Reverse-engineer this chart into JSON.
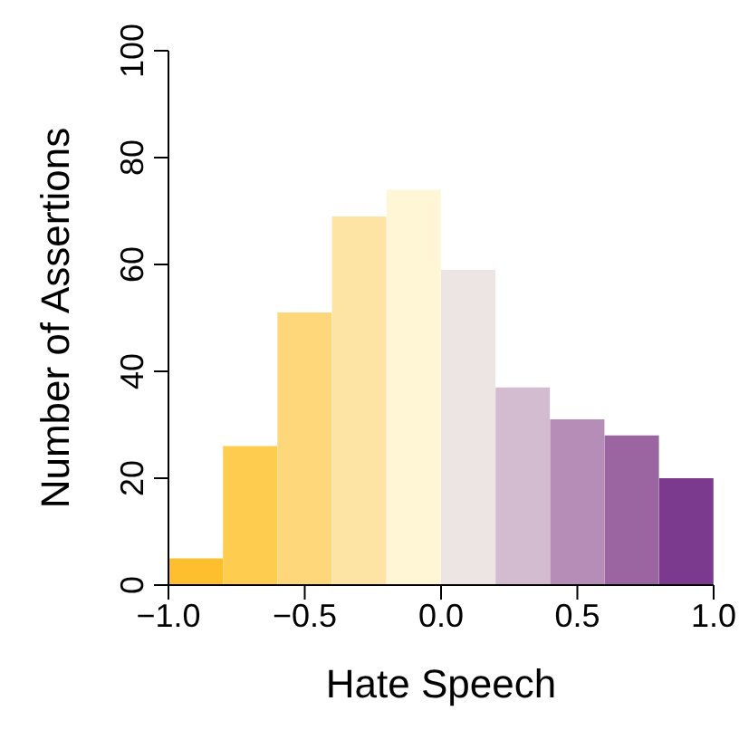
{
  "chart_data": {
    "type": "histogram",
    "xlabel": "Hate Speech",
    "ylabel": "Number of Assertions",
    "bins": [
      -1.0,
      -0.8,
      -0.6,
      -0.4,
      -0.2,
      0.0,
      0.2,
      0.4,
      0.6,
      0.8,
      1.0
    ],
    "values": [
      5,
      26,
      51,
      69,
      74,
      59,
      37,
      31,
      28,
      20
    ],
    "colors": [
      "#fdbf2d",
      "#fecc4f",
      "#fdd77a",
      "#fde4a5",
      "#fef6d5",
      "#ede4e4",
      "#d4bcd0",
      "#b68db6",
      "#9a65a0",
      "#7b3a8e"
    ],
    "xlim": [
      -1.0,
      1.0
    ],
    "xticks": [
      {
        "value": -1,
        "label": "−1.0"
      },
      {
        "value": -0.5,
        "label": "−0.5"
      },
      {
        "value": 0,
        "label": "0.0"
      },
      {
        "value": 0.5,
        "label": "0.5"
      },
      {
        "value": 1,
        "label": "1.0"
      }
    ],
    "ylim": [
      0,
      100
    ],
    "yticks": [
      0,
      20,
      40,
      60,
      80,
      100
    ],
    "grid": false,
    "legend": false
  }
}
